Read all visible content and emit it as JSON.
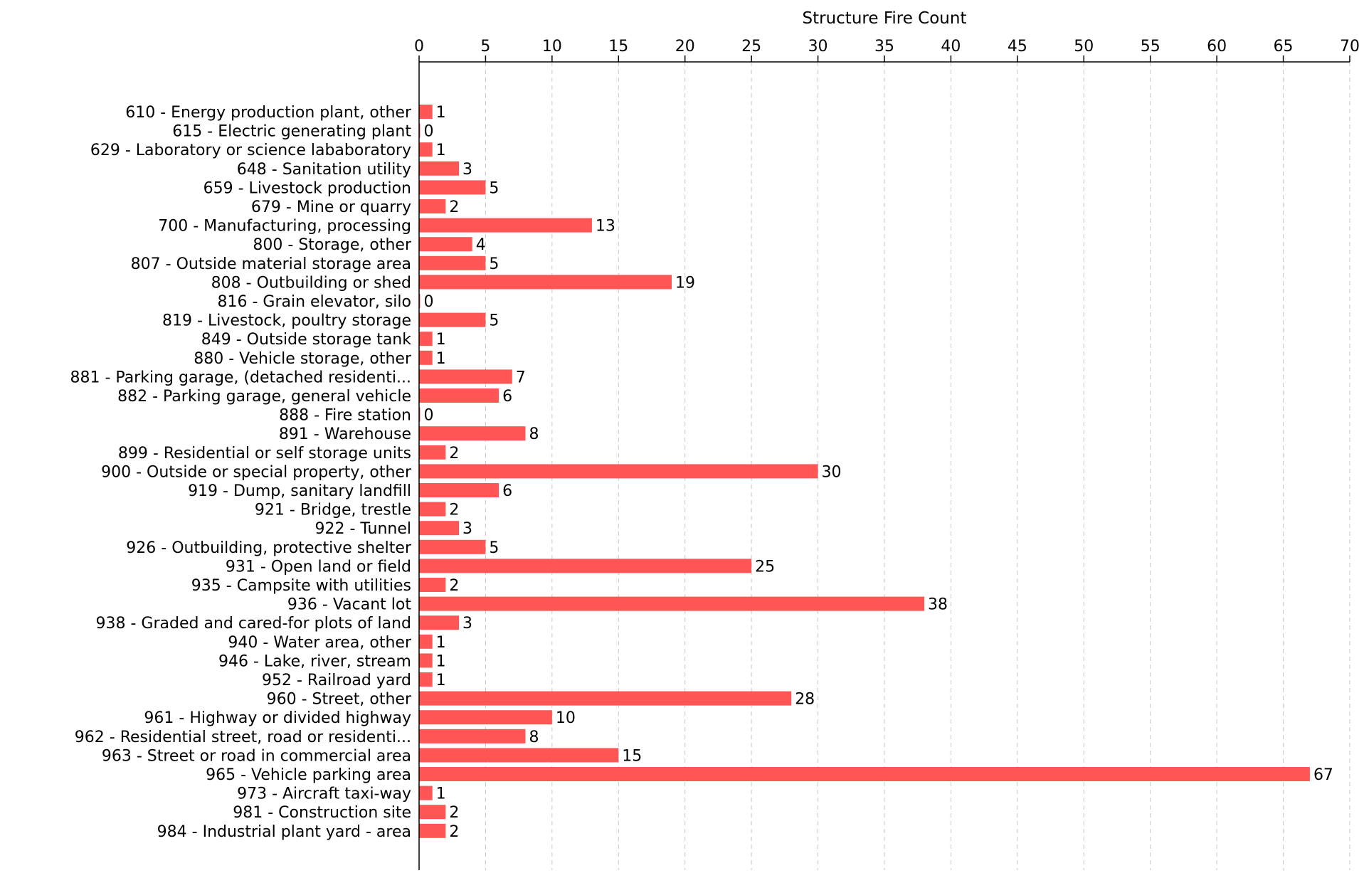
{
  "chart_data": {
    "type": "bar",
    "orientation": "horizontal",
    "title": "",
    "xlabel": "Structure Fire Count",
    "ylabel": "",
    "xlim": [
      0,
      70
    ],
    "xticks": [
      0,
      5,
      10,
      15,
      20,
      25,
      30,
      35,
      40,
      45,
      50,
      55,
      60,
      65,
      70
    ],
    "x_axis_position": "top",
    "grid": "vertical dashed",
    "bar_color": "#ff5555",
    "categories": [
      "610 - Energy production plant, other",
      "615 - Electric generating plant",
      "629 - Laboratory or science lababoratory",
      "648 - Sanitation utility",
      "659 - Livestock production",
      "679 - Mine or quarry",
      "700 - Manufacturing, processing",
      "800 - Storage, other",
      "807 - Outside material storage area",
      "808 - Outbuilding or shed",
      "816 - Grain elevator, silo",
      "819 - Livestock, poultry storage",
      "849 - Outside storage tank",
      "880 - Vehicle storage, other",
      "881 - Parking garage, (detached residenti...",
      "882 - Parking garage, general vehicle",
      "888 - Fire station",
      "891 - Warehouse",
      "899 - Residential or self storage units",
      "900 - Outside or special property, other",
      "919 - Dump, sanitary landfill",
      "921 - Bridge, trestle",
      "922 - Tunnel",
      "926 - Outbuilding, protective shelter",
      "931 - Open land or field",
      "935 - Campsite with utilities",
      "936 - Vacant lot",
      "938 - Graded and cared-for plots of land",
      "940 - Water area, other",
      "946 - Lake, river, stream",
      "952 - Railroad yard",
      "960 - Street, other",
      "961 - Highway or divided highway",
      "962 - Residential street, road or residenti...",
      "963 - Street or road in commercial area",
      "965 - Vehicle parking area",
      "973 - Aircraft taxi-way",
      "981 - Construction site",
      "984 - Industrial plant yard - area"
    ],
    "values": [
      1,
      0,
      1,
      3,
      5,
      2,
      13,
      4,
      5,
      19,
      0,
      5,
      1,
      1,
      7,
      6,
      0,
      8,
      2,
      30,
      6,
      2,
      3,
      5,
      25,
      2,
      38,
      3,
      1,
      1,
      1,
      28,
      10,
      8,
      15,
      67,
      1,
      2,
      2
    ]
  }
}
